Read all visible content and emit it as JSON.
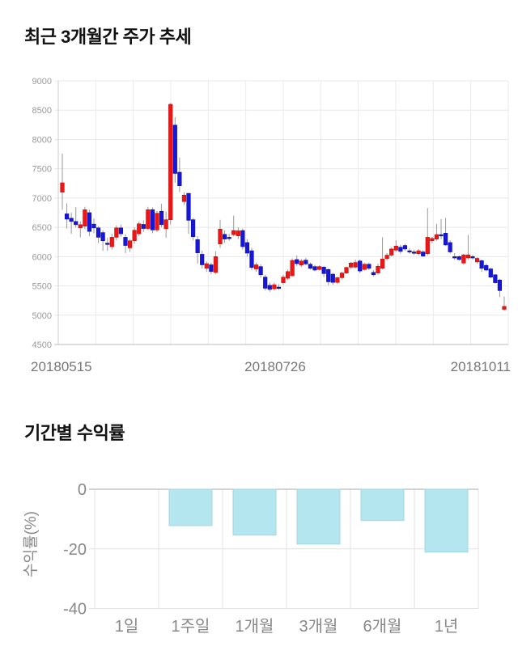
{
  "page": {
    "background": "#ffffff",
    "text_color": "#111111"
  },
  "chart_data": [
    {
      "type": "candlestick",
      "title": "최근 3개월간 주가 추세",
      "xlabel": "",
      "ylabel": "",
      "ylim": [
        4500,
        9000
      ],
      "y_ticks": [
        9000,
        8500,
        8000,
        7500,
        7000,
        6500,
        6000,
        5500,
        5000,
        4500
      ],
      "x_tick_labels": [
        "20180515",
        "20180726",
        "20181011"
      ],
      "grid": true,
      "up_color": "#ef1515",
      "up_stroke": "#c40e0e",
      "down_color": "#1717d9",
      "down_stroke": "#0d0dab",
      "doji_color": "#1b1b8f",
      "wick_color": "#999999",
      "grid_color": "#ebebeb",
      "axis_color": "#cccccc",
      "tick_text_color": "#999999",
      "date_text_color": "#777777",
      "candles_ohlc": [
        [
          7100,
          7760,
          6800,
          7260
        ],
        [
          6730,
          6910,
          6480,
          6640
        ],
        [
          6655,
          6750,
          6390,
          6600
        ],
        [
          6600,
          6845,
          6500,
          6545
        ],
        [
          6490,
          6600,
          6330,
          6545
        ],
        [
          6520,
          6850,
          6470,
          6800
        ],
        [
          6750,
          6800,
          6350,
          6430
        ],
        [
          6555,
          6650,
          6400,
          6490
        ],
        [
          6490,
          6520,
          6230,
          6330
        ],
        [
          6410,
          6450,
          6100,
          6270
        ],
        [
          6230,
          6320,
          6100,
          6230
        ],
        [
          6170,
          6390,
          6120,
          6330
        ],
        [
          6330,
          6530,
          6280,
          6490
        ],
        [
          6490,
          6550,
          6340,
          6390
        ],
        [
          6330,
          6380,
          6060,
          6190
        ],
        [
          6150,
          6300,
          6080,
          6270
        ],
        [
          6270,
          6500,
          6220,
          6450
        ],
        [
          6390,
          6600,
          6350,
          6560
        ],
        [
          6550,
          6620,
          6420,
          6480
        ],
        [
          6480,
          6850,
          6450,
          6800
        ],
        [
          6800,
          6840,
          6400,
          6455
        ],
        [
          6455,
          6780,
          6420,
          6740
        ],
        [
          6775,
          6900,
          6500,
          6545
        ],
        [
          6475,
          6770,
          6320,
          6630
        ],
        [
          6630,
          8620,
          6550,
          8600
        ],
        [
          8245,
          8380,
          7260,
          7420
        ],
        [
          7440,
          7690,
          7100,
          7210
        ],
        [
          6940,
          7100,
          6880,
          7050
        ],
        [
          7080,
          7080,
          6390,
          6620
        ],
        [
          6630,
          6660,
          6280,
          6340
        ],
        [
          6290,
          6350,
          5880,
          6065
        ],
        [
          6040,
          6100,
          5800,
          5860
        ],
        [
          5800,
          5920,
          5740,
          5880
        ],
        [
          5860,
          5900,
          5700,
          5745
        ],
        [
          5730,
          6090,
          5700,
          6000
        ],
        [
          6215,
          6630,
          6150,
          6470
        ],
        [
          6380,
          6450,
          6230,
          6300
        ],
        [
          6330,
          6390,
          6270,
          6330
        ],
        [
          6375,
          6700,
          6350,
          6445
        ],
        [
          6355,
          6500,
          6300,
          6440
        ],
        [
          6445,
          6480,
          6120,
          6170
        ],
        [
          6240,
          6300,
          6000,
          6060
        ],
        [
          6100,
          6150,
          5770,
          5815
        ],
        [
          5790,
          5900,
          5740,
          5860
        ],
        [
          5830,
          5870,
          5640,
          5690
        ],
        [
          5650,
          5690,
          5420,
          5460
        ],
        [
          5510,
          5560,
          5400,
          5440
        ],
        [
          5450,
          5560,
          5420,
          5520
        ],
        [
          5480,
          5530,
          5430,
          5480
        ],
        [
          5555,
          5690,
          5520,
          5650
        ],
        [
          5630,
          5780,
          5600,
          5745
        ],
        [
          5675,
          5970,
          5650,
          5935
        ],
        [
          5950,
          6020,
          5840,
          5880
        ],
        [
          5855,
          5960,
          5820,
          5925
        ],
        [
          5940,
          5980,
          5850,
          5875
        ],
        [
          5870,
          5900,
          5780,
          5800
        ],
        [
          5830,
          5860,
          5750,
          5770
        ],
        [
          5780,
          5850,
          5760,
          5830
        ],
        [
          5820,
          5840,
          5650,
          5710
        ],
        [
          5780,
          5800,
          5510,
          5570
        ],
        [
          5700,
          5720,
          5520,
          5560
        ],
        [
          5560,
          5660,
          5530,
          5640
        ],
        [
          5640,
          5745,
          5610,
          5720
        ],
        [
          5720,
          5830,
          5700,
          5815
        ],
        [
          5820,
          5910,
          5790,
          5890
        ],
        [
          5820,
          5950,
          5800,
          5900
        ],
        [
          5925,
          5950,
          5720,
          5755
        ],
        [
          5780,
          5890,
          5760,
          5870
        ],
        [
          5870,
          5900,
          5770,
          5800
        ],
        [
          5730,
          5770,
          5660,
          5690
        ],
        [
          5720,
          5880,
          5690,
          5835
        ],
        [
          5800,
          6330,
          5780,
          5960
        ],
        [
          5965,
          6060,
          5930,
          6025
        ],
        [
          6025,
          6160,
          6000,
          6130
        ],
        [
          6110,
          6280,
          6080,
          6180
        ],
        [
          6160,
          6200,
          6050,
          6090
        ],
        [
          6190,
          6220,
          6100,
          6130
        ],
        [
          6100,
          6140,
          6050,
          6100
        ],
        [
          6080,
          6120,
          6030,
          6080
        ],
        [
          6050,
          6130,
          6020,
          6100
        ],
        [
          6080,
          6110,
          5990,
          6010
        ],
        [
          6050,
          6830,
          6020,
          6330
        ],
        [
          6270,
          6340,
          6230,
          6310
        ],
        [
          6300,
          6560,
          6270,
          6375
        ],
        [
          6375,
          6640,
          6300,
          6375
        ],
        [
          6400,
          6660,
          6180,
          6200
        ],
        [
          6240,
          6280,
          6050,
          6080
        ],
        [
          6000,
          6060,
          5950,
          6000
        ],
        [
          6000,
          6020,
          5930,
          5950
        ],
        [
          5890,
          6050,
          5860,
          6030
        ],
        [
          5980,
          6370,
          5950,
          6030
        ],
        [
          6000,
          6030,
          5950,
          6000
        ],
        [
          5910,
          5990,
          5880,
          5970
        ],
        [
          5930,
          5950,
          5740,
          5800
        ],
        [
          5850,
          5880,
          5750,
          5770
        ],
        [
          5790,
          5810,
          5630,
          5650
        ],
        [
          5690,
          5700,
          5540,
          5555
        ],
        [
          5600,
          5620,
          5310,
          5420
        ],
        [
          5100,
          5320,
          5080,
          5150
        ]
      ]
    },
    {
      "type": "bar",
      "title": "기간별 수익률",
      "xlabel": "",
      "ylabel": "수익률(%)",
      "categories": [
        "1일",
        "1주일",
        "1개월",
        "3개월",
        "6개월",
        "1년"
      ],
      "values": [
        0,
        -12.2,
        -15.4,
        -18.4,
        -10.5,
        -21.1
      ],
      "y_ticks": [
        0,
        -20,
        -40
      ],
      "ylim": [
        -40,
        0
      ],
      "grid": true,
      "legend": null,
      "bar_color": "#b3e6ef",
      "bar_stroke": "#a5d5e1",
      "zero_line_color": "#aaaaaa",
      "grid_color": "#e3e3e3",
      "label_color": "#888888"
    }
  ]
}
